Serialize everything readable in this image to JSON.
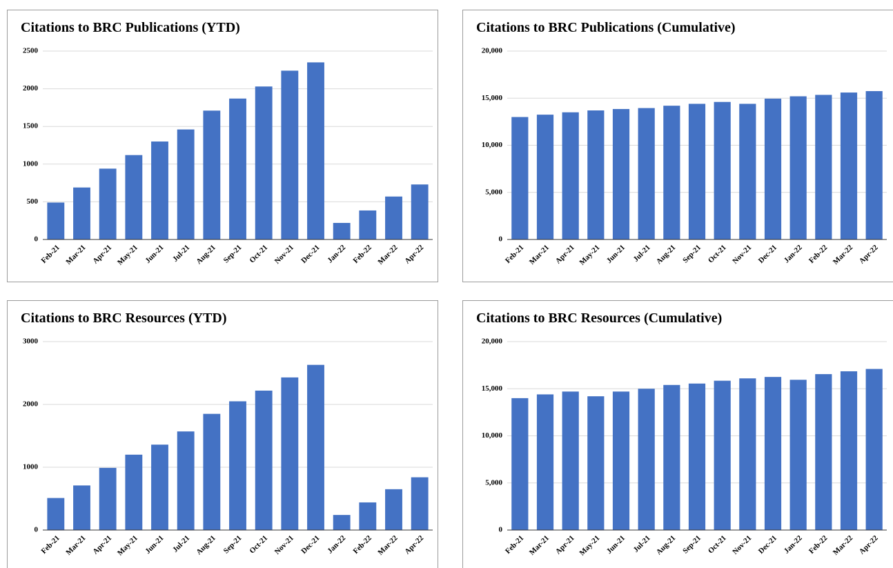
{
  "chart_data": [
    {
      "type": "bar",
      "title": "Citations to BRC Publications (YTD)",
      "categories": [
        "Feb-21",
        "Mar-21",
        "Apr-21",
        "May-21",
        "Jun-21",
        "Jul-21",
        "Aug-21",
        "Sep-21",
        "Oct-21",
        "Nov-21",
        "Dec-21",
        "Jan-22",
        "Feb-22",
        "Mar-22",
        "Apr-22"
      ],
      "values": [
        490,
        690,
        940,
        1120,
        1300,
        1460,
        1710,
        1870,
        2030,
        2240,
        2350,
        220,
        385,
        570,
        730
      ],
      "color": "#4472c4",
      "ylim": [
        0,
        2500
      ],
      "yticks": [
        0,
        500,
        1000,
        1500,
        2000,
        2500
      ],
      "grid": true
    },
    {
      "type": "bar",
      "title": "Citations to BRC Publications (Cumulative)",
      "categories": [
        "Feb-21",
        "Mar-21",
        "Apr-21",
        "May-21",
        "Jun-21",
        "Jul-21",
        "Aug-21",
        "Sep-21",
        "Oct-21",
        "Nov-21",
        "Dec-21",
        "Jan-22",
        "Feb-22",
        "Mar-22",
        "Apr-22"
      ],
      "values": [
        13000,
        13250,
        13500,
        13700,
        13850,
        13950,
        14200,
        14400,
        14600,
        14400,
        14950,
        15200,
        15350,
        15600,
        15750
      ],
      "color": "#4472c4",
      "ylim": [
        0,
        20000
      ],
      "yticks": [
        0,
        {
          "value": 5000,
          "label": "5,000"
        },
        {
          "value": 10000,
          "label": "10,000"
        },
        {
          "value": 15000,
          "label": "15,000"
        },
        {
          "value": 20000,
          "label": "20,000"
        }
      ],
      "grid": true
    },
    {
      "type": "bar",
      "title": "Citations to BRC Resources (YTD)",
      "categories": [
        "Feb-21",
        "Mar-21",
        "Apr-21",
        "May-21",
        "Jun-21",
        "Jul-21",
        "Aug-21",
        "Sep-21",
        "Oct-21",
        "Nov-21",
        "Dec-21",
        "Jan-22",
        "Feb-22",
        "Mar-22",
        "Apr-22"
      ],
      "values": [
        510,
        710,
        990,
        1200,
        1360,
        1570,
        1850,
        2050,
        2220,
        2430,
        2630,
        240,
        440,
        650,
        840
      ],
      "color": "#4472c4",
      "ylim": [
        0,
        3000
      ],
      "yticks": [
        0,
        1000,
        2000,
        3000
      ],
      "grid": true
    },
    {
      "type": "bar",
      "title": "Citations to BRC Resources (Cumulative)",
      "categories": [
        "Feb-21",
        "Mar-21",
        "Apr-21",
        "May-21",
        "Jun-21",
        "Jul-21",
        "Aug-21",
        "Sep-21",
        "Oct-21",
        "Nov-21",
        "Dec-21",
        "Jan-22",
        "Feb-22",
        "Mar-22",
        "Apr-22"
      ],
      "values": [
        14000,
        14400,
        14700,
        14200,
        14700,
        15000,
        15400,
        15550,
        15850,
        16100,
        16250,
        15950,
        16550,
        16850,
        17100
      ],
      "color": "#4472c4",
      "ylim": [
        0,
        20000
      ],
      "yticks": [
        0,
        {
          "value": 5000,
          "label": "5,000"
        },
        {
          "value": 10000,
          "label": "10,000"
        },
        {
          "value": 15000,
          "label": "15,000"
        },
        {
          "value": 20000,
          "label": "20,000"
        }
      ],
      "grid": true
    }
  ]
}
